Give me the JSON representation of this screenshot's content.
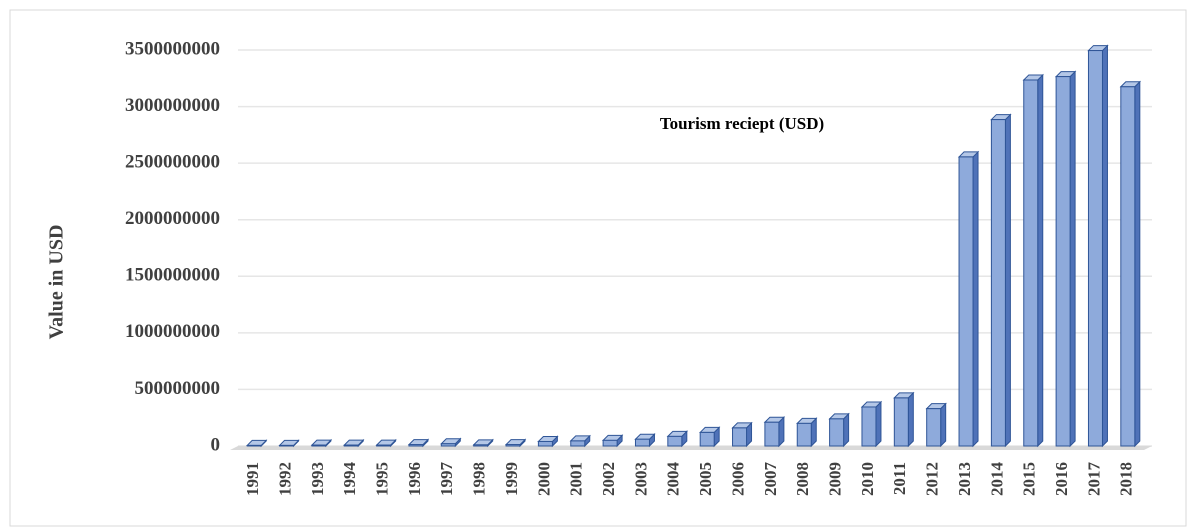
{
  "chart_data": {
    "type": "bar",
    "title": "Tourism reciept (USD)",
    "y_label": "Value in USD",
    "categories": [
      "1991",
      "1992",
      "1993",
      "1994",
      "1995",
      "1996",
      "1997",
      "1998",
      "1999",
      "2000",
      "2001",
      "2002",
      "2003",
      "2004",
      "2005",
      "2006",
      "2007",
      "2008",
      "2009",
      "2010",
      "2011",
      "2012",
      "2013",
      "2014",
      "2015",
      "2016",
      "2017",
      "2018"
    ],
    "values": [
      5000000,
      5000000,
      8000000,
      8000000,
      8000000,
      12000000,
      20000000,
      10000000,
      12000000,
      40000000,
      45000000,
      50000000,
      60000000,
      85000000,
      120000000,
      160000000,
      210000000,
      200000000,
      240000000,
      345000000,
      425000000,
      330000000,
      2555000000,
      2885000000,
      3235000000,
      3265000000,
      3495000000,
      3175000000
    ],
    "color": "#8eaadb",
    "ylim": [
      0,
      3500000000
    ],
    "yticks": [
      0,
      500000000,
      1000000000,
      1500000000,
      2000000000,
      2500000000,
      3000000000,
      3500000000
    ],
    "grid": true
  }
}
